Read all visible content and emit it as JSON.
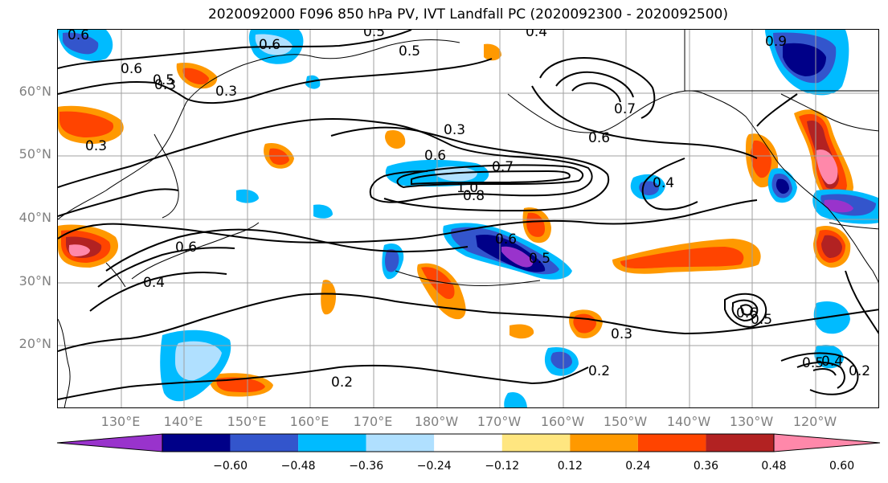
{
  "title": "2020092000 F096 850 hPa PV, IVT Landfall PC (2020092300 - 2020092500)",
  "lat_labels": [
    "60°N",
    "50°N",
    "40°N",
    "30°N",
    "20°N"
  ],
  "lon_labels": [
    "130°E",
    "140°E",
    "150°E",
    "160°E",
    "170°E",
    "180°W",
    "170°W",
    "160°W",
    "150°W",
    "140°W",
    "130°W",
    "120°W"
  ],
  "contour_labels": [
    "0.6",
    "0.5",
    "0.5",
    "0.6",
    "0.3",
    "0.5",
    "0.4",
    "0.3",
    "0.6",
    "0.9",
    "0.7",
    "0.6",
    "0.3",
    "0.6",
    "0.7",
    "1.0",
    "0.8",
    "0.4",
    "0.6",
    "0.5",
    "0.6",
    "0.4",
    "0.3",
    "0.2",
    "0.6",
    "0.5",
    "0.5",
    "0.4",
    "0.2",
    "0.2",
    "0.3"
  ],
  "colorbar": {
    "colors": [
      "#9933cc",
      "#000088",
      "#3355cc",
      "#00bbff",
      "#b0e0ff",
      "#ffffff",
      "#ffe680",
      "#ff9900",
      "#ff4400",
      "#b22222",
      "#ff88aa"
    ],
    "ticks": [
      "−0.60",
      "−0.48",
      "−0.36",
      "−0.24",
      "−0.12",
      "0.12",
      "0.24",
      "0.36",
      "0.48",
      "0.60"
    ]
  }
}
